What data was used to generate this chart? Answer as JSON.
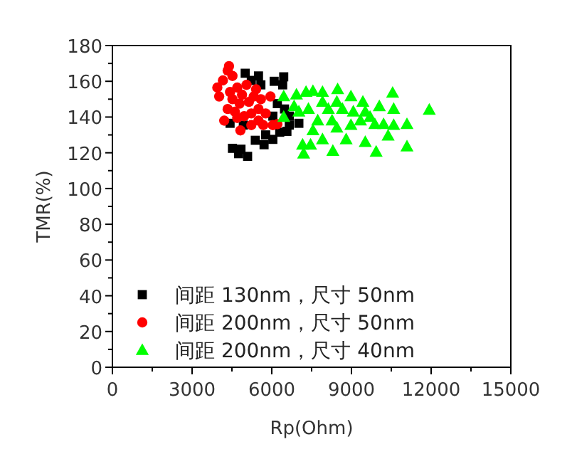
{
  "chart_data": {
    "type": "scatter",
    "xlabel": "Rp(Ohm)",
    "ylabel": "TMR(%)",
    "xlim": [
      0,
      15000
    ],
    "ylim": [
      0,
      180
    ],
    "xticks": [
      0,
      3000,
      6000,
      9000,
      12000,
      15000
    ],
    "yticks": [
      0,
      20,
      40,
      60,
      80,
      100,
      120,
      140,
      160,
      180
    ],
    "grid": false,
    "legend": "bottom left",
    "series": [
      {
        "name": "间距 130nm，尺寸 50nm",
        "color": "#000000",
        "marker": "square",
        "x": [
          5000,
          5500,
          6450,
          6090,
          6410,
          4430,
          4520,
          4750,
          5090,
          5380,
          4840,
          5710,
          6040,
          6300,
          6570,
          6660,
          7020,
          6480,
          6210,
          5590,
          5230,
          4930,
          5770,
          6660,
          6040
        ],
        "values": [
          164.5,
          163,
          162.5,
          160,
          158,
          136.5,
          122.5,
          119.5,
          118,
          127,
          122,
          124.5,
          127.5,
          131.5,
          132,
          135.5,
          136.5,
          144.5,
          147.5,
          158,
          160.5,
          135.5,
          130,
          140.5,
          140.5
        ]
      },
      {
        "name": "间距 200nm，尺寸 50nm",
        "color": "#ff0000",
        "marker": "circle",
        "x": [
          4390,
          4340,
          4520,
          4160,
          3950,
          4020,
          4210,
          4820,
          5230,
          5680,
          6040,
          6210,
          5950,
          5770,
          5500,
          5410,
          5050,
          4700,
          4880,
          4520,
          5140,
          4610,
          4960,
          5230,
          4340,
          4700,
          5500,
          5320,
          5590,
          4430,
          4790
        ],
        "values": [
          168.5,
          166,
          163,
          160.5,
          156.5,
          151.5,
          138,
          132.5,
          135.5,
          135.5,
          135.5,
          136,
          151.5,
          142,
          144.5,
          155.5,
          158,
          156.5,
          152.5,
          150,
          148.5,
          143,
          140.5,
          142,
          144.5,
          139.5,
          138,
          151.5,
          150,
          154,
          147.5
        ]
      },
      {
        "name": "间距 200nm，尺寸 40nm",
        "color": "#00ff00",
        "marker": "triangle",
        "x": [
          6450,
          6450,
          6930,
          7290,
          7550,
          7910,
          8480,
          8980,
          9430,
          10050,
          10550,
          10590,
          11930,
          11090,
          11090,
          10380,
          9880,
          9930,
          9520,
          8800,
          8300,
          7910,
          7460,
          7200,
          7160,
          7550,
          8270,
          8980,
          9340,
          8130,
          8660,
          7380,
          7020,
          6840,
          7910,
          8450,
          9070,
          9520,
          9700,
          10210,
          10590,
          8450,
          7730
        ],
        "values": [
          151.5,
          140,
          152.5,
          154,
          154.5,
          154,
          155.5,
          151.5,
          148.5,
          146,
          153.5,
          144.5,
          144,
          136,
          123.5,
          129.5,
          136,
          120.5,
          126,
          127.5,
          121,
          127.5,
          124.5,
          119.5,
          124.5,
          132.5,
          138,
          135.5,
          138,
          144.5,
          144.5,
          144.5,
          143,
          146,
          148.5,
          148.5,
          143,
          143,
          140,
          136,
          135.5,
          134,
          138
        ]
      }
    ]
  }
}
